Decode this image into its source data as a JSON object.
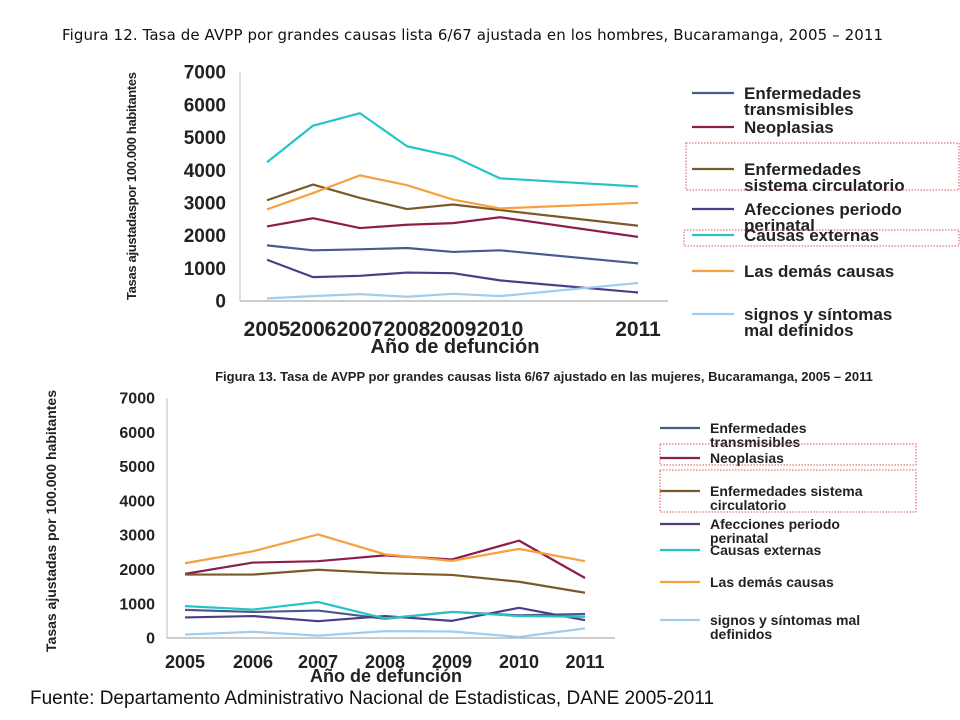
{
  "slide": {
    "title": "Figura 12. Tasa de AVPP por grandes causas lista 6/67 ajustada en los hombres, Bucaramanga, 2005 – 2011",
    "source": "Fuente: Departamento Administrativo Nacional de Estadisticas, DANE 2005-2011"
  },
  "chart_data": [
    {
      "type": "line",
      "title": "",
      "xlabel": "Año de defunción",
      "ylabel": "Tasas ajustadaspor 100.000 habitantes",
      "x": [
        "2005",
        "2006",
        "2007",
        "2008",
        "2009",
        "2010",
        "2011"
      ],
      "ylim": [
        0,
        7000
      ],
      "yticks": [
        "0",
        "1000",
        "2000",
        "3000",
        "4000",
        "5000",
        "6000",
        "7000"
      ],
      "grid": false,
      "legend_position": "right",
      "series": [
        {
          "name": "Enfermedades transmisibles",
          "name_lines": [
            "Enfermedades",
            "transmisibles"
          ],
          "color": "#4a5a8c",
          "values": [
            1700,
            1550,
            1580,
            1620,
            1500,
            1550,
            1150
          ],
          "highlight": false
        },
        {
          "name": "Neoplasias",
          "name_lines": [
            "Neoplasias"
          ],
          "color": "#8b1e4f",
          "values": [
            2280,
            2530,
            2230,
            2330,
            2380,
            2560,
            1960
          ],
          "highlight": false
        },
        {
          "name": "Enfermedades sistema circulatorio",
          "name_lines": [
            "Enfermedades",
            "sistema circulatorio"
          ],
          "color": "#7a5a2a",
          "values": [
            3080,
            3560,
            3150,
            2810,
            2950,
            2780,
            2300
          ],
          "highlight": true
        },
        {
          "name": "Afecciones periodo perinatal",
          "name_lines": [
            "Afecciones periodo",
            "perinatal"
          ],
          "color": "#4a3f86",
          "values": [
            1260,
            730,
            770,
            870,
            850,
            630,
            260
          ],
          "highlight": false
        },
        {
          "name": "Causas externas",
          "name_lines": [
            "Causas externas"
          ],
          "color": "#26c4c4",
          "values": [
            4240,
            5360,
            5740,
            4730,
            4420,
            3750,
            3500
          ],
          "highlight": true
        },
        {
          "name": "Las demás causas",
          "name_lines": [
            "Las demás causas"
          ],
          "color": "#f7a040",
          "values": [
            2800,
            3300,
            3840,
            3540,
            3100,
            2830,
            3000
          ],
          "highlight": false
        },
        {
          "name": "signos y síntomas mal definidos",
          "name_lines": [
            "signos y síntomas",
            "mal definidos"
          ],
          "color": "#9fcdf0",
          "values": [
            80,
            150,
            210,
            130,
            220,
            150,
            550
          ],
          "highlight": false
        }
      ]
    },
    {
      "type": "line",
      "title": "Figura 13. Tasa de AVPP por grandes causas lista 6/67 ajustado en las mujeres, Bucaramanga, 2005 – 2011",
      "xlabel": "Año de defunción",
      "ylabel": "Tasas ajustadas por 100.000 habitantes",
      "x": [
        "2005",
        "2006",
        "2007",
        "2008",
        "2009",
        "2010",
        "2011"
      ],
      "ylim": [
        0,
        7000
      ],
      "yticks": [
        "0",
        "1000",
        "2000",
        "3000",
        "4000",
        "5000",
        "6000",
        "7000"
      ],
      "grid": false,
      "legend_position": "right",
      "series": [
        {
          "name": "Enfermedades transmisibles",
          "name_lines": [
            "Enfermedades",
            "transmisibles"
          ],
          "color": "#4a5a8c",
          "values": [
            820,
            760,
            800,
            560,
            760,
            660,
            700
          ],
          "highlight": false
        },
        {
          "name": "Neoplasias",
          "name_lines": [
            "Neoplasias"
          ],
          "color": "#8b1e4f",
          "values": [
            1870,
            2200,
            2240,
            2410,
            2290,
            2840,
            1750
          ],
          "highlight": true
        },
        {
          "name": "Enfermedades sistema circulatorio",
          "name_lines": [
            "Enfermedades sistema",
            "circulatorio"
          ],
          "color": "#7a5a2a",
          "values": [
            1850,
            1850,
            1990,
            1890,
            1840,
            1640,
            1320
          ],
          "highlight": true
        },
        {
          "name": "Afecciones periodo perinatal",
          "name_lines": [
            "Afecciones periodo",
            "perinatal"
          ],
          "color": "#4a3f86",
          "values": [
            600,
            640,
            490,
            640,
            500,
            880,
            520
          ],
          "highlight": false
        },
        {
          "name": "Causas externas",
          "name_lines": [
            "Causas externas"
          ],
          "color": "#26c4c4",
          "values": [
            930,
            830,
            1050,
            570,
            760,
            640,
            620
          ],
          "highlight": false
        },
        {
          "name": "Las demás causas",
          "name_lines": [
            "Las demás causas"
          ],
          "color": "#f7a040",
          "values": [
            2180,
            2530,
            3020,
            2440,
            2250,
            2600,
            2240
          ],
          "highlight": false
        },
        {
          "name": "signos y síntomas mal definidos",
          "name_lines": [
            "signos y síntomas mal",
            "definidos"
          ],
          "color": "#9fcdf0",
          "values": [
            100,
            180,
            70,
            200,
            190,
            30,
            280
          ],
          "highlight": false
        }
      ]
    }
  ]
}
